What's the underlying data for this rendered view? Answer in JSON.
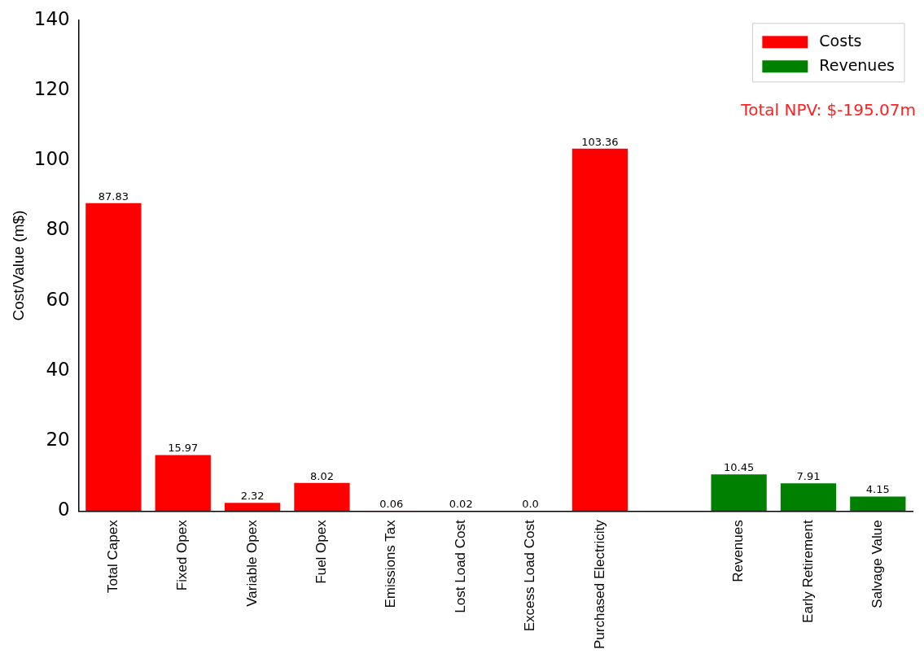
{
  "chart_data": {
    "type": "bar",
    "ylabel": "Cost/Value (m$)",
    "categories": [
      "Total Capex",
      "Fixed Opex",
      "Variable Opex",
      "Fuel Opex",
      "Emissions Tax",
      "Lost Load Cost",
      "Excess Load Cost",
      "Purchased Electricity",
      null,
      "Revenues",
      "Early Retirement",
      "Salvage Value"
    ],
    "series": [
      {
        "name": "Costs",
        "color": "#ff0000",
        "values": [
          87.83,
          15.97,
          2.32,
          8.02,
          0.06,
          0.02,
          0.0,
          103.36,
          null,
          null,
          null,
          null
        ],
        "value_labels": [
          "87.83",
          "15.97",
          "2.32",
          "8.02",
          "0.06",
          "0.02",
          "0.0",
          "103.36",
          null,
          null,
          null,
          null
        ]
      },
      {
        "name": "Revenues",
        "color": "#008000",
        "values": [
          null,
          null,
          null,
          null,
          null,
          null,
          null,
          null,
          null,
          10.45,
          7.91,
          4.15
        ],
        "value_labels": [
          null,
          null,
          null,
          null,
          null,
          null,
          null,
          null,
          null,
          "10.45",
          "7.91",
          "4.15"
        ]
      }
    ],
    "ylim": [
      0,
      140
    ],
    "yticks": [
      0,
      20,
      40,
      60,
      80,
      100,
      120,
      140
    ],
    "grid": false,
    "legend": "top right",
    "annotations": [
      "Total NPV: $-195.07m"
    ]
  }
}
